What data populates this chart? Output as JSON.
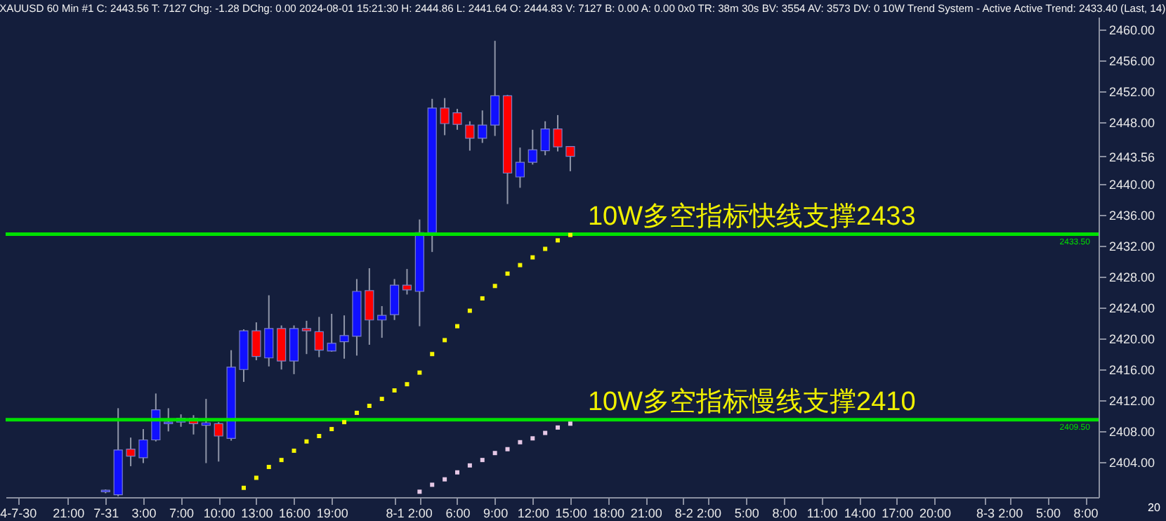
{
  "chart_data": {
    "type": "candlestick",
    "title": "XAUUSD 60 Min #1 C: 2443.56 T: 7127 Chg: -1.28 DChg: 0.00 2024-08-01 15:21:30 H: 2444.86 L: 2441.64 O: 2444.83 V: 7127 B: 0.00 A: 0.00 0x0 TR: 38m 30s BV: 3554 AV: 3573 DV: 0 10W Trend System - Active Active Trend: 2433.40 (Last, 14)",
    "categories": [
      "4-7-30",
      null,
      null,
      null,
      "21:00",
      null,
      null,
      "7-31",
      null,
      null,
      "3:00",
      null,
      null,
      "7:00",
      null,
      null,
      "10:00",
      null,
      null,
      "13:00",
      null,
      null,
      "16:00",
      null,
      null,
      "19:00",
      null,
      null,
      null,
      null,
      "8-1",
      null,
      "2:00",
      null,
      null,
      "6:00",
      null,
      null,
      "9:00",
      null,
      null,
      "12:00",
      null,
      null,
      "15:00",
      null,
      null,
      "18:00",
      null,
      null,
      "21:00",
      null,
      null,
      "8-2",
      null,
      "2:00",
      null,
      null,
      "5:00",
      null,
      null,
      "8:00",
      null,
      null,
      "11:00",
      null,
      null,
      "14:00",
      null,
      null,
      "17:00",
      null,
      null,
      "20:00",
      null,
      null,
      null,
      "8-3",
      null,
      "2:00",
      null,
      null,
      "5:00",
      null,
      null,
      "8:00"
    ],
    "ohlc": [
      null,
      null,
      null,
      null,
      null,
      null,
      null,
      [
        2400.2,
        2400.5,
        2400.0,
        2400.4
      ],
      [
        2399.8,
        2411.0,
        2399.6,
        2405.6
      ],
      [
        2405.7,
        2407.2,
        2403.5,
        2404.8
      ],
      [
        2404.6,
        2408.3,
        2403.9,
        2406.9
      ],
      [
        2406.9,
        2412.9,
        2406.7,
        2410.8
      ],
      [
        2409.0,
        2411.0,
        2408.0,
        2409.2
      ],
      [
        2409.2,
        2410.2,
        2408.6,
        2409.7
      ],
      [
        2409.7,
        2410.1,
        2407.6,
        2409.0
      ],
      [
        2408.8,
        2412.2,
        2403.9,
        2409.1
      ],
      [
        2409.0,
        2409.2,
        2404.1,
        2407.4
      ],
      [
        2407.1,
        2418.5,
        2406.8,
        2416.3
      ],
      [
        2416.0,
        2421.2,
        2414.4,
        2421.0
      ],
      [
        2421.0,
        2422.1,
        2417.2,
        2417.7
      ],
      [
        2417.5,
        2425.6,
        2416.4,
        2421.3
      ],
      [
        2421.3,
        2421.7,
        2416.0,
        2417.1
      ],
      [
        2417.1,
        2421.7,
        2415.4,
        2421.3
      ],
      [
        2421.3,
        2422.3,
        2418.0,
        2421.0
      ],
      [
        2420.9,
        2422.8,
        2417.6,
        2418.5
      ],
      [
        2418.4,
        2423.2,
        2418.3,
        2419.4
      ],
      [
        2419.6,
        2423.0,
        2417.4,
        2420.4
      ],
      [
        2420.3,
        2427.7,
        2417.8,
        2426.1
      ],
      [
        2426.2,
        2429.1,
        2419.2,
        2422.4
      ],
      [
        2422.4,
        2424.2,
        2420.1,
        2423.0
      ],
      [
        2423.1,
        2427.7,
        2422.4,
        2426.9
      ],
      [
        2426.9,
        2429.0,
        2425.7,
        2426.3
      ],
      [
        2426.1,
        2435.4,
        2421.6,
        2433.7
      ],
      [
        2433.7,
        2451.0,
        2431.2,
        2449.8
      ],
      [
        2449.8,
        2451.1,
        2446.3,
        2447.8
      ],
      [
        2449.2,
        2449.7,
        2447.0,
        2447.7
      ],
      [
        2447.6,
        2448.1,
        2444.3,
        2445.9
      ],
      [
        2445.9,
        2449.5,
        2445.3,
        2447.6
      ],
      [
        2447.6,
        2458.5,
        2446.2,
        2451.4
      ],
      [
        2451.4,
        2451.5,
        2437.4,
        2441.4
      ],
      [
        2440.9,
        2444.7,
        2439.5,
        2442.8
      ],
      [
        2442.8,
        2447.0,
        2442.5,
        2444.4
      ],
      [
        2444.3,
        2448.1,
        2443.7,
        2447.1
      ],
      [
        2447.1,
        2448.9,
        2444.2,
        2444.8
      ],
      [
        2444.83,
        2444.86,
        2441.64,
        2443.56
      ],
      null,
      null,
      null,
      null,
      null,
      null,
      null,
      null,
      null,
      null,
      null,
      null,
      null,
      null,
      null,
      null,
      null,
      null,
      null,
      null,
      null,
      null,
      null,
      null,
      null,
      null,
      null,
      null,
      null,
      null,
      null,
      null,
      null,
      null,
      null,
      null,
      null,
      null,
      null,
      null,
      null
    ],
    "colors": [
      null,
      null,
      null,
      null,
      null,
      null,
      null,
      "#1010ff",
      "#1010ff",
      "#ff0000",
      "#1010ff",
      "#1010ff",
      "#1010ff",
      "#1010ff",
      "#ff0000",
      "#1010ff",
      "#ff0000",
      "#1010ff",
      "#1010ff",
      "#ff0000",
      "#1010ff",
      "#ff0000",
      "#1010ff",
      "#ff0000",
      "#ff0000",
      "#1010ff",
      "#1010ff",
      "#1010ff",
      "#ff0000",
      "#1010ff",
      "#1010ff",
      "#ff0000",
      "#1010ff",
      "#1010ff",
      "#ff0000",
      "#ff0000",
      "#ff0000",
      "#1010ff",
      "#1010ff",
      "#ff0000",
      "#1010ff",
      "#1010ff",
      "#1010ff",
      "#ff0000",
      "#ff0000",
      null,
      null,
      null,
      null,
      null,
      null,
      null,
      null,
      null,
      null,
      null,
      null,
      null,
      null,
      null,
      null,
      null,
      null,
      null,
      null,
      null,
      null,
      null,
      null,
      null,
      null,
      null,
      null,
      null,
      null,
      null,
      null,
      null,
      null,
      null,
      null,
      null,
      null,
      null,
      null,
      null
    ],
    "series": [
      {
        "type": "scatter",
        "color": "#f5f500",
        "values": [
          null,
          null,
          null,
          null,
          null,
          null,
          null,
          null,
          null,
          null,
          null,
          null,
          null,
          null,
          null,
          null,
          null,
          null,
          2400.7,
          2402.0,
          2403.4,
          2404.3,
          2405.5,
          2406.7,
          2407.4,
          2408.3,
          2409.2,
          2410.4,
          2411.3,
          2412.2,
          2413.3,
          2414.1,
          2415.6,
          2418.0,
          2419.8,
          2421.6,
          2423.6,
          2425.2,
          2426.8,
          2428.4,
          2429.5,
          2430.5,
          2431.6,
          2432.7,
          2433.4,
          null,
          null,
          null,
          null,
          null,
          null,
          null,
          null,
          null,
          null,
          null,
          null,
          null,
          null,
          null,
          null,
          null,
          null,
          null,
          null,
          null,
          null,
          null,
          null,
          null,
          null,
          null,
          null,
          null,
          null,
          null,
          null,
          null,
          null,
          null,
          null,
          null,
          null,
          null,
          null,
          null
        ]
      },
      {
        "type": "scatter",
        "color": "#e6c8e6",
        "values": [
          null,
          null,
          null,
          null,
          null,
          null,
          null,
          null,
          null,
          null,
          null,
          null,
          null,
          null,
          null,
          null,
          null,
          null,
          null,
          null,
          null,
          null,
          null,
          null,
          null,
          null,
          null,
          null,
          null,
          null,
          null,
          null,
          2400.2,
          2401.1,
          2401.8,
          2402.7,
          2403.6,
          2404.3,
          2405.2,
          2405.7,
          2406.6,
          2407.1,
          2407.8,
          2408.5,
          2409.0,
          null,
          null,
          null,
          null,
          null,
          null,
          null,
          null,
          null,
          null,
          null,
          null,
          null,
          null,
          null,
          null,
          null,
          null,
          null,
          null,
          null,
          null,
          null,
          null,
          null,
          null,
          null,
          null,
          null,
          null,
          null,
          null,
          null,
          null,
          null,
          null,
          null,
          null,
          null,
          null,
          null
        ]
      }
    ],
    "marker": "square",
    "ylim": [
      2399.5,
      2461.6
    ],
    "yticks": [
      {
        "value": 2460,
        "label": "2460.00"
      },
      {
        "value": 2456,
        "label": "2456.00"
      },
      {
        "value": 2452,
        "label": "2452.00"
      },
      {
        "value": 2448,
        "label": "2448.00"
      },
      {
        "value": 2443.56,
        "label": "2443.56"
      },
      {
        "value": 2440,
        "label": "2440.00"
      },
      {
        "value": 2436,
        "label": "2436.00"
      },
      {
        "value": 2432,
        "label": "2432.00"
      },
      {
        "value": 2428,
        "label": "2428.00"
      },
      {
        "value": 2424,
        "label": "2424.00"
      },
      {
        "value": 2420,
        "label": "2420.00"
      },
      {
        "value": 2416,
        "label": "2416.00"
      },
      {
        "value": 2412,
        "label": "2412.00"
      },
      {
        "value": 2408,
        "label": "2408.00"
      },
      {
        "value": 2404,
        "label": "2404.00"
      }
    ],
    "ref_lines": [
      {
        "axis": "y",
        "value": 2433.5,
        "label": "2433.50",
        "color": "#00e000"
      },
      {
        "axis": "y",
        "value": 2409.5,
        "label": "2409.50",
        "color": "#00e000"
      }
    ],
    "annotations": [
      "10W多空指标快线支撑2433",
      "10W多空指标慢线支撑2410",
      "20"
    ]
  }
}
